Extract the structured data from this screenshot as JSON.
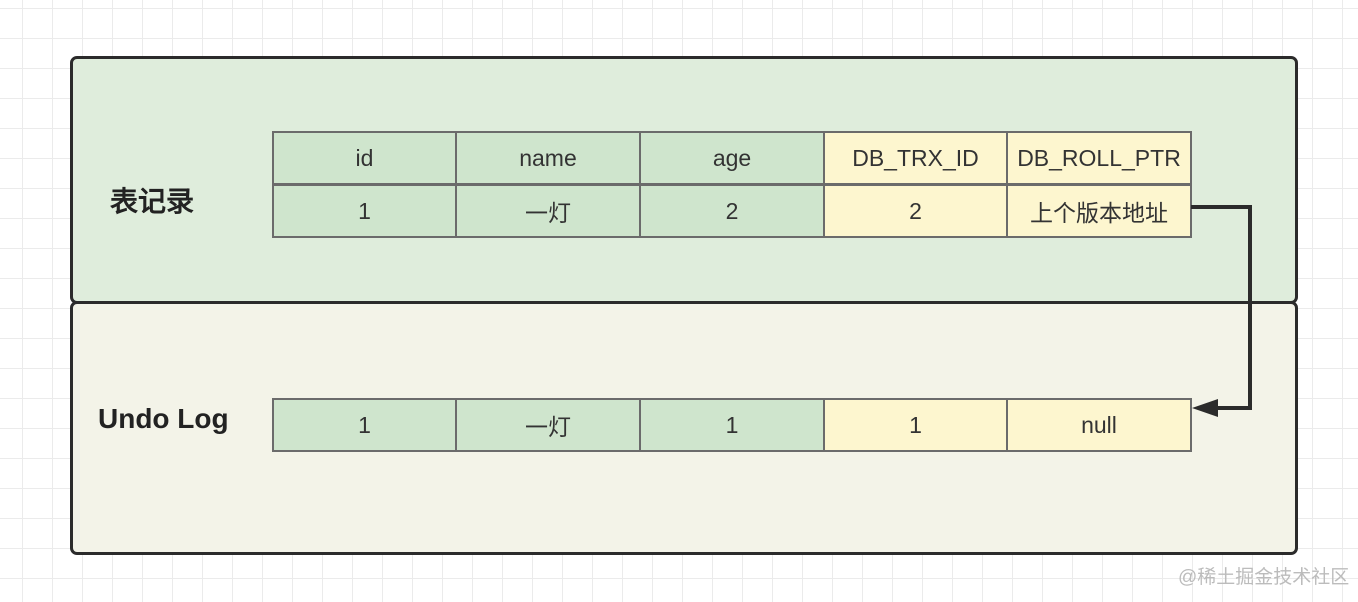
{
  "record_label": "表记录",
  "undo_label": "Undo Log",
  "headers": [
    "id",
    "name",
    "age",
    "DB_TRX_ID",
    "DB_ROLL_PTR"
  ],
  "record_row": [
    "1",
    "一灯",
    "2",
    "2",
    "上个版本地址"
  ],
  "undo_row": [
    "1",
    "一灯",
    "1",
    "1",
    "null"
  ],
  "colors": {
    "record_bg": "#dfeddc",
    "undo_bg": "#f3f3e8",
    "user_col": "#cfe5cd",
    "hidden_col": "#fdf6cf"
  },
  "watermark": "@稀土掘金技术社区"
}
